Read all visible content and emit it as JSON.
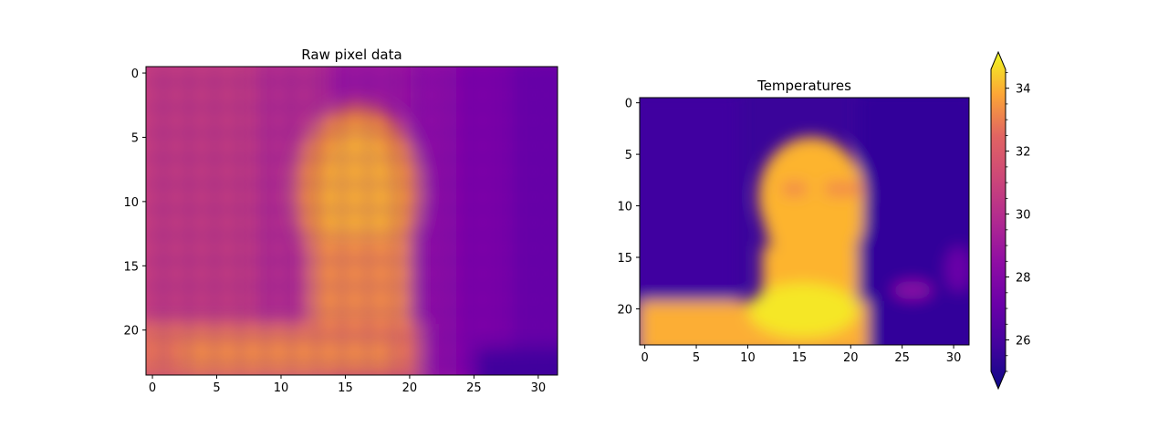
{
  "chart_data": [
    {
      "type": "heatmap",
      "title": "Raw pixel data",
      "xlabel": "",
      "ylabel": "",
      "x_range": [
        -0.5,
        31.5
      ],
      "y_range": [
        23.5,
        -0.5
      ],
      "x_ticks": [
        0,
        5,
        10,
        15,
        20,
        25,
        30
      ],
      "y_ticks": [
        0,
        5,
        10,
        15,
        20
      ],
      "grid": false,
      "colormap": "plasma",
      "shape": [
        24,
        32
      ],
      "description_values": "thermal face image; subject roughly x 11-21, head y 3-12, shoulders y 19-23"
    },
    {
      "type": "heatmap",
      "title": "Temperatures",
      "xlabel": "",
      "ylabel": "",
      "x_range": [
        -0.5,
        31.5
      ],
      "y_range": [
        23.5,
        -0.5
      ],
      "x_ticks": [
        0,
        5,
        10,
        15,
        20,
        25,
        30
      ],
      "y_ticks": [
        0,
        5,
        10,
        15,
        20
      ],
      "grid": false,
      "colormap": "plasma",
      "shape": [
        24,
        32
      ],
      "colorbar": {
        "vmin": 25.0,
        "vmax": 34.6,
        "ticks": [
          26,
          28,
          30,
          32,
          34
        ],
        "extend": "both"
      }
    }
  ]
}
